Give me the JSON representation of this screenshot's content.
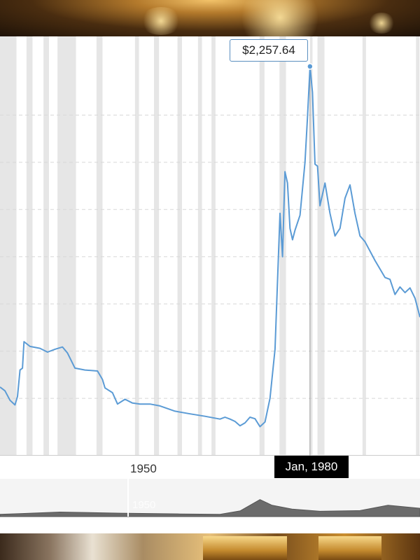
{
  "chart_data": {
    "type": "line",
    "title": "",
    "xlabel": "",
    "ylabel": "",
    "x_tick_labels": [
      "1950"
    ],
    "visible_years": [
      1918,
      2002
    ],
    "series": [
      {
        "values": [
          [
            1918.0,
            560
          ],
          [
            1919.0,
            540
          ],
          [
            1920.0,
            490
          ],
          [
            1921.0,
            465
          ],
          [
            1921.5,
            510
          ],
          [
            1922.0,
            650
          ],
          [
            1922.5,
            660
          ],
          [
            1922.8,
            800
          ],
          [
            1924.0,
            775
          ],
          [
            1926.0,
            765
          ],
          [
            1927.5,
            745
          ],
          [
            1929.0,
            760
          ],
          [
            1930.5,
            772
          ],
          [
            1931.5,
            740
          ],
          [
            1933.0,
            660
          ],
          [
            1935.0,
            650
          ],
          [
            1937.5,
            645
          ],
          [
            1938.5,
            600
          ],
          [
            1939.0,
            555
          ],
          [
            1940.5,
            530
          ],
          [
            1941.5,
            470
          ],
          [
            1943.0,
            495
          ],
          [
            1944.5,
            475
          ],
          [
            1946.0,
            470
          ],
          [
            1948.0,
            470
          ],
          [
            1950.0,
            460
          ],
          [
            1953.0,
            432
          ],
          [
            1956.0,
            418
          ],
          [
            1959.0,
            405
          ],
          [
            1962.0,
            390
          ],
          [
            1963.0,
            400
          ],
          [
            1964.0,
            390
          ],
          [
            1965.0,
            378
          ],
          [
            1966.0,
            355
          ],
          [
            1967.0,
            370
          ],
          [
            1968.0,
            400
          ],
          [
            1969.0,
            392
          ],
          [
            1970.0,
            350
          ],
          [
            1971.0,
            375
          ],
          [
            1972.0,
            500
          ],
          [
            1973.0,
            760
          ],
          [
            1974.0,
            1480
          ],
          [
            1974.5,
            1250
          ],
          [
            1975.0,
            1700
          ],
          [
            1975.5,
            1640
          ],
          [
            1976.0,
            1400
          ],
          [
            1976.5,
            1340
          ],
          [
            1977.0,
            1390
          ],
          [
            1978.0,
            1470
          ],
          [
            1979.0,
            1750
          ],
          [
            1979.5,
            1990
          ],
          [
            1980.0,
            2257.64
          ],
          [
            1980.5,
            2120
          ],
          [
            1981.0,
            1740
          ],
          [
            1981.5,
            1730
          ],
          [
            1982.0,
            1520
          ],
          [
            1983.0,
            1640
          ],
          [
            1984.0,
            1480
          ],
          [
            1985.0,
            1360
          ],
          [
            1986.0,
            1400
          ],
          [
            1987.0,
            1560
          ],
          [
            1988.0,
            1630
          ],
          [
            1989.0,
            1480
          ],
          [
            1990.0,
            1360
          ],
          [
            1991.0,
            1330
          ],
          [
            1993.0,
            1230
          ],
          [
            1995.0,
            1140
          ],
          [
            1996.0,
            1130
          ],
          [
            1997.0,
            1050
          ],
          [
            1998.0,
            1090
          ],
          [
            1999.0,
            1060
          ],
          [
            2000.0,
            1085
          ],
          [
            2001.0,
            1030
          ],
          [
            2002.0,
            930
          ]
        ]
      }
    ],
    "ylim": [
      200,
      2350
    ],
    "grid": true,
    "recession_bands": [
      [
        1918.0,
        1921.3
      ],
      [
        1923.3,
        1924.5
      ],
      [
        1926.7,
        1927.8
      ],
      [
        1929.5,
        1933.2
      ],
      [
        1937.3,
        1938.5
      ],
      [
        1945.0,
        1945.8
      ],
      [
        1948.8,
        1949.8
      ],
      [
        1953.5,
        1954.4
      ],
      [
        1957.6,
        1958.4
      ],
      [
        1960.3,
        1961.1
      ],
      [
        1969.9,
        1970.9
      ],
      [
        1973.9,
        1975.2
      ],
      [
        1980.0,
        1980.5
      ],
      [
        1981.5,
        1982.9
      ],
      [
        1990.5,
        1991.2
      ],
      [
        2001.2,
        2001.9
      ]
    ],
    "highlight": {
      "x": 1980.0,
      "value_label": "$2,257.64",
      "date_label": "Jan, 1980"
    },
    "navigator": {
      "label": "1950",
      "overview": [
        [
          1915,
          0.06
        ],
        [
          1920,
          0.08
        ],
        [
          1930,
          0.12
        ],
        [
          1945,
          0.09
        ],
        [
          1960,
          0.07
        ],
        [
          1970,
          0.06
        ],
        [
          1975,
          0.15
        ],
        [
          1980,
          0.45
        ],
        [
          1983,
          0.3
        ],
        [
          1988,
          0.2
        ],
        [
          1995,
          0.14
        ],
        [
          2005,
          0.16
        ],
        [
          2012,
          0.3
        ],
        [
          2020,
          0.22
        ]
      ]
    }
  },
  "colors": {
    "line": "#5b9bd5",
    "band": "#e6e6e6",
    "grid": "#d8d8d8",
    "crosshair": "#999999",
    "navigator_fill": "#6b6b6b"
  }
}
